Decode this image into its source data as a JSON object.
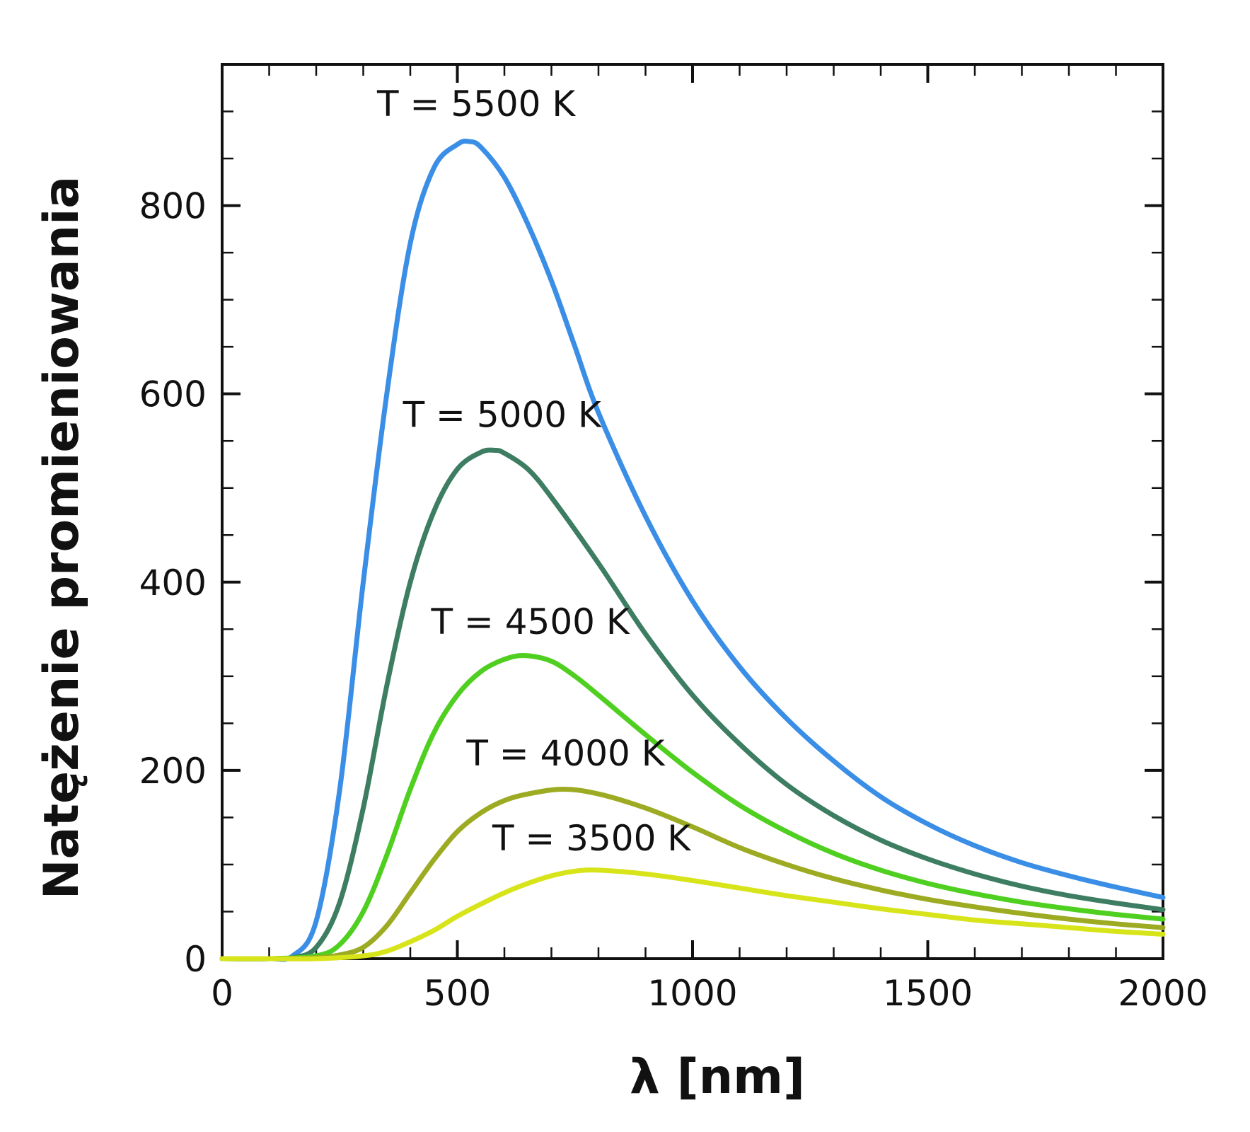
{
  "chart_data": {
    "type": "line",
    "xlabel": "λ [nm]",
    "ylabel": "Natężenie promieniowania",
    "xlim": [
      0,
      2000
    ],
    "ylim": [
      0,
      950
    ],
    "x_ticks": [
      0,
      500,
      1000,
      1500,
      2000
    ],
    "y_ticks": [
      0,
      200,
      400,
      600,
      800
    ],
    "x_minor_step": 100,
    "y_minor_step": 50,
    "grid": false,
    "legend": "none",
    "series": [
      {
        "name": "T = 5500 K",
        "color": "#3a8ee6",
        "x": [
          0,
          100,
          150,
          200,
          250,
          300,
          350,
          400,
          450,
          500,
          526,
          550,
          600,
          650,
          700,
          750,
          800,
          900,
          1000,
          1100,
          1200,
          1300,
          1400,
          1500,
          1600,
          1700,
          1800,
          1900,
          2000
        ],
        "y": [
          0,
          0,
          3,
          40,
          180,
          400,
          600,
          760,
          840,
          865,
          868,
          862,
          830,
          780,
          720,
          650,
          580,
          470,
          380,
          310,
          255,
          210,
          172,
          143,
          120,
          102,
          88,
          76,
          65
        ]
      },
      {
        "name": "T = 5000 K",
        "color": "#3d7d62",
        "x": [
          0,
          100,
          150,
          200,
          250,
          300,
          350,
          400,
          450,
          500,
          550,
          580,
          600,
          650,
          700,
          800,
          900,
          1000,
          1100,
          1200,
          1300,
          1400,
          1500,
          1600,
          1700,
          1800,
          1900,
          2000
        ],
        "y": [
          0,
          0,
          1,
          12,
          60,
          160,
          290,
          400,
          475,
          520,
          538,
          540,
          537,
          520,
          490,
          420,
          345,
          280,
          228,
          185,
          152,
          126,
          106,
          90,
          77,
          67,
          59,
          52
        ]
      },
      {
        "name": "T = 4500 K",
        "color": "#4fcf1f",
        "x": [
          0,
          100,
          200,
          250,
          300,
          350,
          400,
          450,
          500,
          550,
          600,
          644,
          700,
          750,
          800,
          900,
          1000,
          1100,
          1200,
          1300,
          1400,
          1500,
          1600,
          1700,
          1800,
          1900,
          2000
        ],
        "y": [
          0,
          0,
          3,
          15,
          50,
          110,
          180,
          240,
          280,
          305,
          318,
          322,
          316,
          300,
          280,
          238,
          198,
          163,
          135,
          112,
          94,
          80,
          69,
          60,
          53,
          47,
          42
        ]
      },
      {
        "name": "T = 4000 K",
        "color": "#9cab22",
        "x": [
          0,
          100,
          200,
          250,
          300,
          350,
          400,
          450,
          500,
          550,
          600,
          650,
          725,
          800,
          900,
          1000,
          1100,
          1200,
          1300,
          1400,
          1500,
          1600,
          1700,
          1800,
          1900,
          2000
        ],
        "y": [
          0,
          0,
          1,
          4,
          12,
          35,
          70,
          105,
          135,
          155,
          168,
          175,
          180,
          175,
          160,
          140,
          118,
          100,
          85,
          73,
          63,
          55,
          48,
          42,
          37,
          33
        ]
      },
      {
        "name": "T = 3500 K",
        "color": "#d8e41a",
        "x": [
          0,
          100,
          200,
          300,
          350,
          400,
          450,
          500,
          550,
          600,
          650,
          700,
          750,
          800,
          900,
          1000,
          1100,
          1200,
          1300,
          1400,
          1500,
          1600,
          1700,
          1800,
          1900,
          2000
        ],
        "y": [
          0,
          0,
          0,
          3,
          8,
          18,
          30,
          45,
          58,
          70,
          80,
          88,
          93,
          94,
          90,
          83,
          75,
          67,
          60,
          53,
          47,
          41,
          37,
          33,
          29,
          26
        ]
      }
    ],
    "annotations": [
      {
        "text": "T = 5500 K",
        "x": 540,
        "y": 895
      },
      {
        "text": "T = 5000 K",
        "x": 595,
        "y": 565
      },
      {
        "text": "T = 4500 K",
        "x": 655,
        "y": 345
      },
      {
        "text": "T = 4000 K",
        "x": 730,
        "y": 205
      },
      {
        "text": "T = 3500 K",
        "x": 785,
        "y": 115
      }
    ]
  }
}
